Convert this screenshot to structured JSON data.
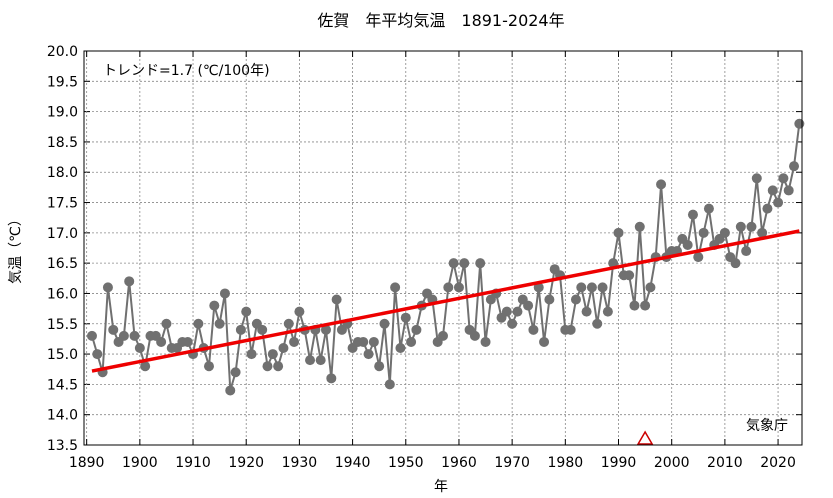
{
  "chart_data": {
    "type": "line",
    "title": "佐賀　年平均気温　1891-2024年",
    "xlabel": "年",
    "ylabel": "気温（℃）",
    "xlim": [
      1889.5,
      2024.5
    ],
    "ylim": [
      13.5,
      20.0
    ],
    "x_ticks": [
      1890,
      1900,
      1910,
      1920,
      1930,
      1940,
      1950,
      1960,
      1970,
      1980,
      1990,
      2000,
      2010,
      2020
    ],
    "y_ticks": [
      13.5,
      14.0,
      14.5,
      15.0,
      15.5,
      16.0,
      16.5,
      17.0,
      17.5,
      18.0,
      18.5,
      19.0,
      19.5,
      20.0
    ],
    "grid": true,
    "annotation_trend": "トレンド=1.7 (℃/100年)",
    "source_label": "気象庁",
    "series": [
      {
        "color": "#707070",
        "x": [
          1891,
          1892,
          1893,
          1894,
          1895,
          1896,
          1897,
          1898,
          1899,
          1900,
          1901,
          1902,
          1903,
          1904,
          1905,
          1906,
          1907,
          1908,
          1909,
          1910,
          1911,
          1912,
          1913,
          1914,
          1915,
          1916,
          1917,
          1918,
          1919,
          1920,
          1921,
          1922,
          1923,
          1924,
          1925,
          1926,
          1927,
          1928,
          1929,
          1930,
          1931,
          1932,
          1933,
          1934,
          1935,
          1936,
          1937,
          1938,
          1939,
          1940,
          1941,
          1942,
          1943,
          1944,
          1945,
          1946,
          1947,
          1948,
          1949,
          1950,
          1951,
          1952,
          1953,
          1954,
          1955,
          1956,
          1957,
          1958,
          1959,
          1960,
          1961,
          1962,
          1963,
          1964,
          1965,
          1966,
          1967,
          1968,
          1969,
          1970,
          1971,
          1972,
          1973,
          1974,
          1975,
          1976,
          1977,
          1978,
          1979,
          1980,
          1981,
          1982,
          1983,
          1984,
          1985,
          1986,
          1987,
          1988,
          1989,
          1990,
          1991,
          1992,
          1993,
          1994,
          1995,
          1996,
          1997,
          1998,
          1999,
          2000,
          2001,
          2002,
          2003,
          2004,
          2005,
          2006,
          2007,
          2008,
          2009,
          2010,
          2011,
          2012,
          2013,
          2014,
          2015,
          2016,
          2017,
          2018,
          2019,
          2020,
          2021,
          2022,
          2023,
          2024
        ],
        "values": [
          15.3,
          15.0,
          14.7,
          16.1,
          15.4,
          15.2,
          15.3,
          16.2,
          15.3,
          15.1,
          14.8,
          15.3,
          15.3,
          15.2,
          15.5,
          15.1,
          15.1,
          15.2,
          15.2,
          15.0,
          15.5,
          15.1,
          14.8,
          15.8,
          15.5,
          16.0,
          14.4,
          14.7,
          15.4,
          15.7,
          15.0,
          15.5,
          15.4,
          14.8,
          15.0,
          14.8,
          15.1,
          15.5,
          15.2,
          15.7,
          15.4,
          14.9,
          15.4,
          14.9,
          15.4,
          14.6,
          15.9,
          15.4,
          15.5,
          15.1,
          15.2,
          15.2,
          15.0,
          15.2,
          14.8,
          15.5,
          14.5,
          16.1,
          15.1,
          15.6,
          15.2,
          15.4,
          15.8,
          16.0,
          15.9,
          15.2,
          15.3,
          16.1,
          16.5,
          16.1,
          16.5,
          15.4,
          15.3,
          16.5,
          15.2,
          15.9,
          16.0,
          15.6,
          15.7,
          15.5,
          15.7,
          15.9,
          15.8,
          15.4,
          16.1,
          15.2,
          15.9,
          16.4,
          16.3,
          15.4,
          15.4,
          15.9,
          16.1,
          15.7,
          16.1,
          15.5,
          16.1,
          15.7,
          16.5,
          17.0,
          16.3,
          16.3,
          15.8,
          17.1,
          15.8,
          16.1,
          16.6,
          17.8,
          16.6,
          16.7,
          16.7,
          16.9,
          16.8,
          17.3,
          16.6,
          17.0,
          17.4,
          16.8,
          16.9,
          17.0,
          16.6,
          16.5,
          17.1,
          16.7,
          17.1,
          17.9,
          17.0,
          17.4,
          17.7,
          17.5,
          17.9,
          17.7,
          18.1,
          18.8
        ]
      }
    ],
    "trend_line": {
      "color": "#ee0000",
      "x": [
        1891,
        2024
      ],
      "values": [
        14.72,
        17.03
      ]
    },
    "marker_year": {
      "x": 1995,
      "color": "#cc0000"
    }
  }
}
